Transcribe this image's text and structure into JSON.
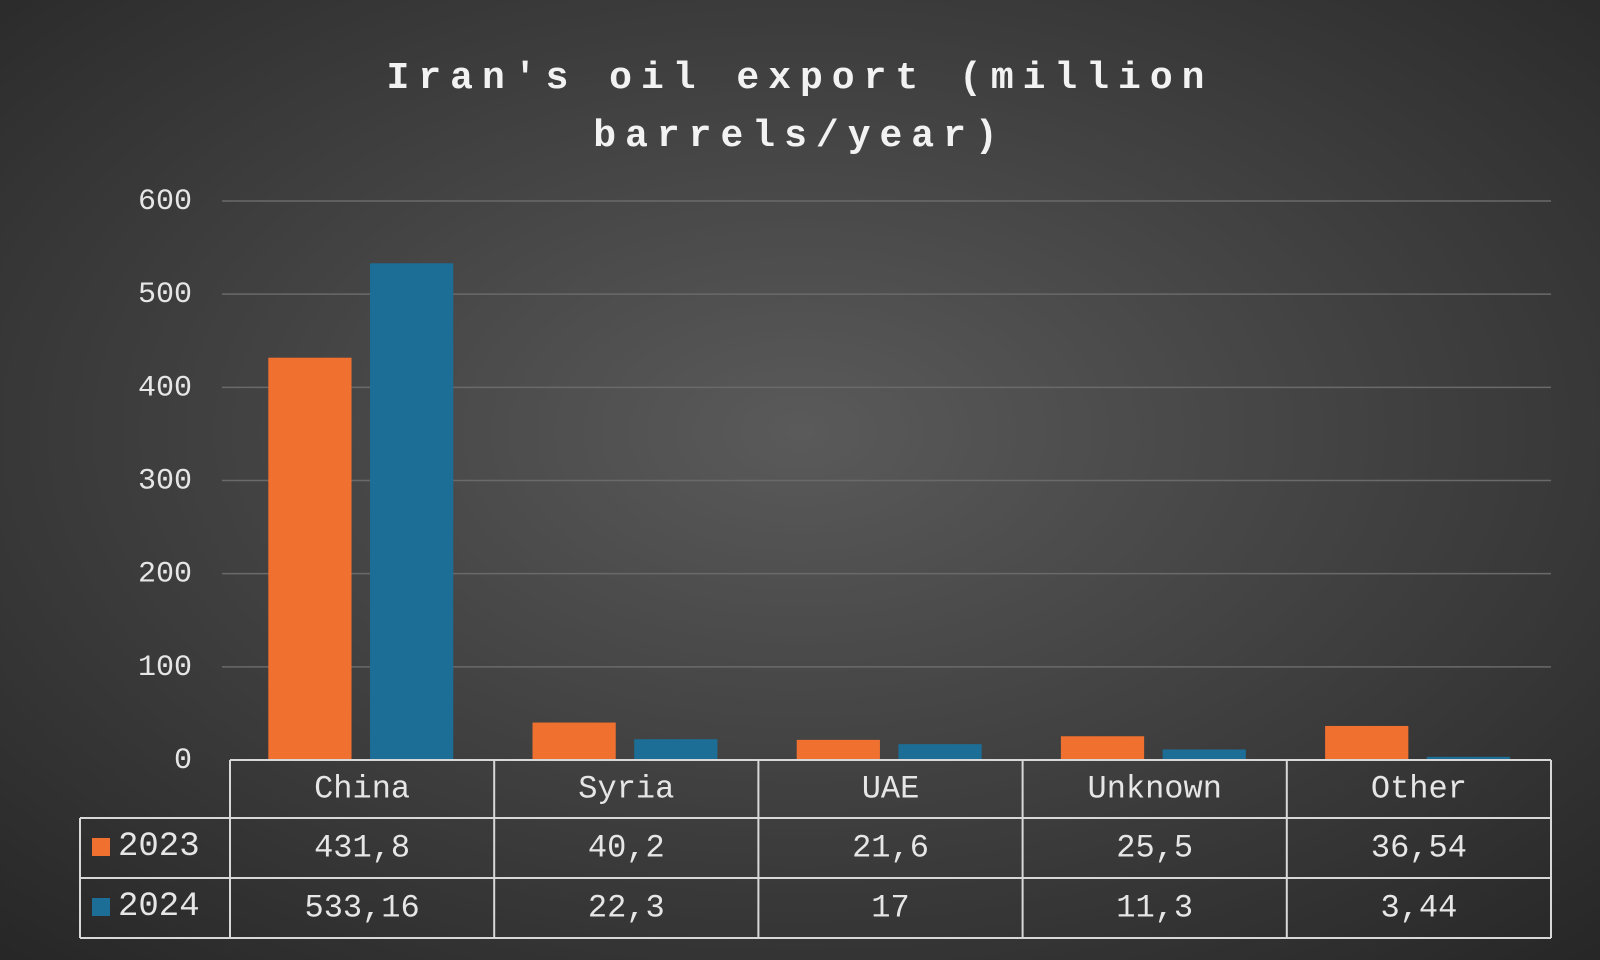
{
  "chart_data": {
    "type": "bar",
    "title": "Iran's oil export (million barrels/year)",
    "categories": [
      "China",
      "Syria",
      "UAE",
      "Unknown",
      "Other"
    ],
    "series": [
      {
        "name": "2023",
        "color": "#f07030",
        "values": [
          431.8,
          40.2,
          21.6,
          25.5,
          36.54
        ],
        "value_labels": [
          "431,8",
          "40,2",
          "21,6",
          "25,5",
          "36,54"
        ]
      },
      {
        "name": "2024",
        "color": "#1c6e96",
        "values": [
          533.16,
          22.3,
          17,
          11.3,
          3.44
        ],
        "value_labels": [
          "533,16",
          "22,3",
          "17",
          "11,3",
          "3,44"
        ]
      }
    ],
    "ylim": [
      0,
      600
    ],
    "yticks": [
      0,
      100,
      200,
      300,
      400,
      500,
      600
    ],
    "grid": true
  }
}
